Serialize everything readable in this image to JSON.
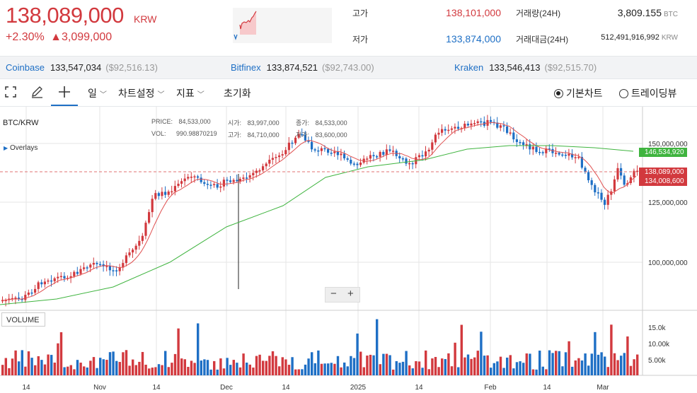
{
  "header": {
    "price": "138,089,000",
    "currency": "KRW",
    "change_pct": "+2.30%",
    "change_amt": "▲3,099,000",
    "high_label": "고가",
    "high_value": "138,101,000",
    "low_label": "저가",
    "low_value": "133,874,000",
    "volume_label": "거래량(24H)",
    "volume_value": "3,809.155",
    "volume_unit": "BTC",
    "turnover_label": "거래대금(24H)",
    "turnover_value": "512,491,916,992",
    "turnover_unit": "KRW"
  },
  "exchanges": [
    {
      "name": "Coinbase",
      "price": "133,547,034",
      "usd": "($92,516.13)"
    },
    {
      "name": "Bitfinex",
      "price": "133,874,521",
      "usd": "($92,743.00)"
    },
    {
      "name": "Kraken",
      "price": "133,546,413",
      "usd": "($92,515.70)"
    }
  ],
  "toolbar": {
    "interval_label": "일",
    "settings_label": "차트설정",
    "indicator_label": "지표",
    "reset_label": "초기화",
    "basic_chart_label": "기본차트",
    "tradingview_label": "트레이딩뷰"
  },
  "chart": {
    "symbol": "BTC/KRW",
    "overlays_label": "Overlays",
    "hud": {
      "price_label": "PRICE:",
      "price_value": "84,533,000",
      "vol_label": "VOL:",
      "vol_value": "990.98870219",
      "open_label": "시가:",
      "open_value": "83,997,000",
      "close_label": "종가:",
      "close_value": "84,533,000",
      "high_label": "고가:",
      "high_value": "84,710,000",
      "low_label": "저가:",
      "low_value": "83,600,000"
    },
    "price_ticks": [
      "150,000,000",
      "125,000,000",
      "100,000,000"
    ],
    "tags": {
      "ma_long": "146,534,920",
      "last_price": "138,089,000",
      "ma_short": "134,008,600"
    },
    "volume_label": "VOLUME",
    "volume_ticks": [
      "15.0k",
      "10.00k",
      "5.00k"
    ],
    "date_ticks": [
      "14",
      "Nov",
      "14",
      "Dec",
      "14",
      "2025",
      "14",
      "Feb",
      "14",
      "Mar"
    ],
    "zoom_out": "−",
    "zoom_in": "+",
    "colors": {
      "up": "#d2393e",
      "down": "#1e6fc5",
      "ma_short": "#e05050",
      "ma_long": "#3fb43f"
    }
  }
}
